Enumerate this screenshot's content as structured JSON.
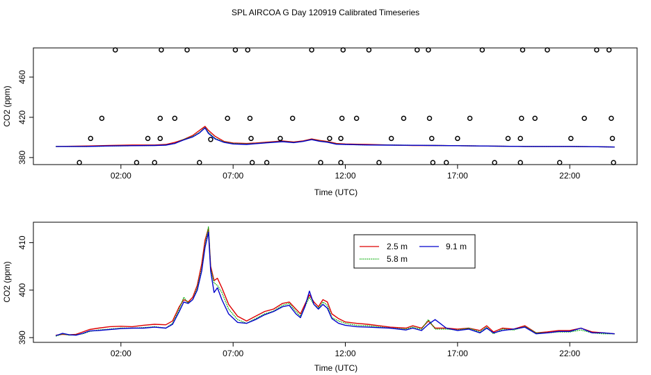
{
  "title": "SPL AIRCOA G  Day 120919  Calibrated Timeseries",
  "colors": {
    "red": "#dd0000",
    "green": "#00aa00",
    "blue": "#0000cc",
    "axis": "#000000"
  },
  "chart_data": [
    {
      "type": "scatter+line",
      "xlabel": "Time (UTC)",
      "ylabel": "CO2 (ppm)",
      "xlim": [
        -1.9,
        25.0
      ],
      "ylim": [
        373.0,
        489.0
      ],
      "xticks": [
        2,
        7,
        12,
        17,
        22
      ],
      "xtick_labels": [
        "02:00",
        "07:00",
        "12:00",
        "17:00",
        "22:00"
      ],
      "yticks": [
        380,
        420,
        460
      ],
      "ytick_labels": [
        "380",
        "420",
        "460"
      ],
      "flag_points": [
        {
          "x": 0.15,
          "y": 375
        },
        {
          "x": 0.65,
          "y": 399
        },
        {
          "x": 1.15,
          "y": 419
        },
        {
          "x": 1.75,
          "y": 487
        },
        {
          "x": 2.7,
          "y": 375
        },
        {
          "x": 3.2,
          "y": 399
        },
        {
          "x": 3.75,
          "y": 399
        },
        {
          "x": 3.75,
          "y": 419
        },
        {
          "x": 3.5,
          "y": 375
        },
        {
          "x": 3.8,
          "y": 487
        },
        {
          "x": 4.4,
          "y": 419
        },
        {
          "x": 4.95,
          "y": 487
        },
        {
          "x": 5.5,
          "y": 375
        },
        {
          "x": 6.0,
          "y": 398
        },
        {
          "x": 6.75,
          "y": 419
        },
        {
          "x": 7.1,
          "y": 487
        },
        {
          "x": 7.65,
          "y": 487
        },
        {
          "x": 7.75,
          "y": 419
        },
        {
          "x": 7.8,
          "y": 399
        },
        {
          "x": 7.85,
          "y": 375
        },
        {
          "x": 8.5,
          "y": 375
        },
        {
          "x": 9.1,
          "y": 399
        },
        {
          "x": 9.65,
          "y": 419
        },
        {
          "x": 10.5,
          "y": 487
        },
        {
          "x": 10.9,
          "y": 375
        },
        {
          "x": 11.3,
          "y": 399
        },
        {
          "x": 11.8,
          "y": 399
        },
        {
          "x": 11.85,
          "y": 419
        },
        {
          "x": 11.9,
          "y": 487
        },
        {
          "x": 11.8,
          "y": 375
        },
        {
          "x": 12.5,
          "y": 419
        },
        {
          "x": 13.05,
          "y": 487
        },
        {
          "x": 13.5,
          "y": 375
        },
        {
          "x": 14.05,
          "y": 399
        },
        {
          "x": 14.6,
          "y": 419
        },
        {
          "x": 15.2,
          "y": 487
        },
        {
          "x": 15.7,
          "y": 487
        },
        {
          "x": 15.75,
          "y": 419
        },
        {
          "x": 15.85,
          "y": 399
        },
        {
          "x": 15.9,
          "y": 375
        },
        {
          "x": 16.5,
          "y": 375
        },
        {
          "x": 17.0,
          "y": 399
        },
        {
          "x": 17.55,
          "y": 419
        },
        {
          "x": 18.1,
          "y": 487
        },
        {
          "x": 18.65,
          "y": 375
        },
        {
          "x": 19.25,
          "y": 399
        },
        {
          "x": 19.8,
          "y": 399
        },
        {
          "x": 19.8,
          "y": 375
        },
        {
          "x": 19.85,
          "y": 419
        },
        {
          "x": 19.9,
          "y": 487
        },
        {
          "x": 20.45,
          "y": 419
        },
        {
          "x": 21.0,
          "y": 487
        },
        {
          "x": 21.55,
          "y": 375
        },
        {
          "x": 22.05,
          "y": 399
        },
        {
          "x": 22.65,
          "y": 419
        },
        {
          "x": 23.2,
          "y": 487
        },
        {
          "x": 23.75,
          "y": 487
        },
        {
          "x": 23.85,
          "y": 419
        },
        {
          "x": 23.9,
          "y": 399
        },
        {
          "x": 23.95,
          "y": 375
        }
      ],
      "series": [
        {
          "name": "2.5 m",
          "color": "red",
          "x": [
            -0.9,
            0.5,
            1.5,
            2.5,
            3.5,
            4.0,
            4.4,
            4.8,
            5.2,
            5.5,
            5.75,
            5.9,
            6.2,
            6.6,
            7.0,
            7.6,
            8.0,
            8.6,
            9.2,
            9.7,
            10.1,
            10.5,
            10.85,
            11.2,
            11.6,
            12.0,
            13.0,
            14.0,
            15.0,
            16.0,
            17.0,
            18.0,
            19.0,
            20.0,
            21.0,
            22.0,
            23.0,
            24.0
          ],
          "y": [
            391,
            391.5,
            392,
            392.5,
            392.5,
            393,
            395,
            398,
            402,
            407,
            411,
            407,
            401,
            396,
            394.5,
            394,
            394.5,
            395.5,
            396.5,
            395.5,
            396.5,
            398.5,
            397,
            396,
            394,
            393.5,
            393,
            392.5,
            392,
            392,
            391.8,
            391.5,
            391.2,
            391,
            391,
            391,
            390.8,
            390.5
          ]
        },
        {
          "name": "5.8 m",
          "color": "green",
          "x": [
            -0.9,
            0.5,
            1.5,
            2.5,
            3.5,
            4.0,
            4.4,
            4.8,
            5.2,
            5.5,
            5.75,
            5.9,
            6.2,
            6.6,
            7.0,
            7.6,
            8.0,
            8.6,
            9.2,
            9.7,
            10.1,
            10.5,
            10.85,
            11.2,
            11.6,
            12.0,
            13.0,
            14.0,
            15.0,
            16.0,
            17.0,
            18.0,
            19.0,
            20.0,
            21.0,
            22.0,
            23.0,
            24.0
          ],
          "y": [
            391,
            391,
            391.5,
            391.8,
            392,
            392.5,
            394,
            398,
            401,
            405,
            410,
            405,
            399,
            395.5,
            394,
            393.5,
            394,
            395,
            396,
            395,
            396,
            398,
            396.5,
            395.5,
            393.5,
            393,
            392.5,
            392.5,
            392.2,
            392,
            391.8,
            391.5,
            391.2,
            391,
            391,
            391,
            390.8,
            390.5
          ]
        },
        {
          "name": "9.1 m",
          "color": "blue",
          "x": [
            -0.9,
            0.5,
            1.5,
            2.5,
            3.5,
            4.0,
            4.4,
            4.8,
            5.2,
            5.5,
            5.75,
            5.9,
            6.2,
            6.6,
            7.0,
            7.6,
            8.0,
            8.6,
            9.2,
            9.7,
            10.1,
            10.5,
            10.85,
            11.2,
            11.6,
            12.0,
            13.0,
            14.0,
            15.0,
            16.0,
            17.0,
            18.0,
            19.0,
            20.0,
            21.0,
            22.0,
            23.0,
            24.0
          ],
          "y": [
            391,
            391,
            391.5,
            391.8,
            392,
            392.3,
            394,
            397.5,
            400.5,
            404.5,
            409.5,
            404,
            398.5,
            395,
            393.5,
            393,
            393.8,
            394.8,
            395.8,
            394.8,
            396,
            397.8,
            396.2,
            395.2,
            393.2,
            393,
            392.5,
            392.3,
            392.2,
            392,
            391.8,
            391.5,
            391.2,
            391,
            391,
            391,
            390.8,
            390.5
          ]
        }
      ]
    },
    {
      "type": "line",
      "xlabel": "Time (UTC)",
      "ylabel": "CO2 (ppm)",
      "xlim": [
        -1.9,
        25.0
      ],
      "ylim": [
        389.0,
        414.3
      ],
      "xticks": [
        2,
        7,
        12,
        17,
        22
      ],
      "xtick_labels": [
        "02:00",
        "07:00",
        "12:00",
        "17:00",
        "22:00"
      ],
      "yticks": [
        390,
        400,
        410
      ],
      "ytick_labels": [
        "390",
        "400",
        "410"
      ],
      "legend": {
        "position": "top-center",
        "entries": [
          {
            "label": "2.5 m",
            "color": "red"
          },
          {
            "label": "5.8 m",
            "color": "green"
          },
          {
            "label": "9.1 m",
            "color": "blue"
          }
        ]
      },
      "series": [
        {
          "name": "2.5 m",
          "color": "red",
          "x": [
            -0.9,
            -0.6,
            -0.3,
            0.0,
            0.3,
            0.6,
            1.0,
            1.5,
            2.0,
            2.5,
            3.0,
            3.5,
            4.0,
            4.3,
            4.6,
            4.8,
            5.0,
            5.2,
            5.4,
            5.6,
            5.75,
            5.9,
            6.0,
            6.15,
            6.3,
            6.5,
            6.8,
            7.2,
            7.6,
            8.0,
            8.4,
            8.8,
            9.2,
            9.5,
            9.8,
            10.0,
            10.2,
            10.4,
            10.6,
            10.8,
            11.0,
            11.2,
            11.4,
            11.7,
            12.0,
            12.5,
            13.0,
            14.0,
            14.7,
            15.0,
            15.4,
            15.7,
            16.0,
            16.5,
            17.0,
            17.5,
            18.0,
            18.3,
            18.6,
            19.0,
            19.5,
            20.0,
            20.5,
            21.0,
            21.5,
            22.0,
            22.5,
            23.0,
            23.5,
            24.0
          ],
          "y": [
            390.5,
            390.7,
            390.6,
            390.7,
            391.2,
            391.7,
            392.0,
            392.3,
            392.4,
            392.3,
            392.6,
            392.8,
            392.7,
            393.5,
            396.5,
            398.0,
            397.5,
            398.5,
            401.0,
            405.5,
            410.5,
            413.0,
            405.0,
            402.0,
            402.5,
            400.5,
            397.0,
            394.5,
            393.5,
            394.5,
            395.5,
            396.0,
            397.2,
            397.5,
            396.0,
            395.0,
            397.0,
            399.0,
            397.5,
            396.5,
            398.0,
            397.5,
            395.0,
            394.0,
            393.3,
            393.0,
            392.8,
            392.2,
            392.0,
            392.5,
            392.0,
            393.5,
            392.0,
            392.0,
            391.8,
            392.0,
            391.5,
            392.5,
            391.2,
            392.0,
            391.8,
            392.5,
            391.0,
            391.2,
            391.5,
            391.5,
            392.0,
            391.2,
            391.0,
            390.8
          ]
        },
        {
          "name": "5.8 m",
          "color": "green",
          "x": [
            -0.9,
            -0.6,
            -0.3,
            0.0,
            0.3,
            0.6,
            1.0,
            1.5,
            2.0,
            2.5,
            3.0,
            3.5,
            4.0,
            4.3,
            4.6,
            4.8,
            5.0,
            5.2,
            5.4,
            5.6,
            5.75,
            5.9,
            6.0,
            6.15,
            6.3,
            6.5,
            6.8,
            7.2,
            7.6,
            8.0,
            8.4,
            8.8,
            9.2,
            9.5,
            9.8,
            10.0,
            10.2,
            10.4,
            10.6,
            10.8,
            11.0,
            11.2,
            11.4,
            11.7,
            12.0,
            12.5,
            13.0,
            14.0,
            14.7,
            15.0,
            15.4,
            15.7,
            16.0,
            16.5,
            17.0,
            17.5,
            18.0,
            18.3,
            18.6,
            19.0,
            19.5,
            20.0,
            20.5,
            21.0,
            21.5,
            22.0,
            22.5,
            23.0,
            23.5,
            24.0
          ],
          "y": [
            390.3,
            390.8,
            390.5,
            390.6,
            390.8,
            391.3,
            391.6,
            391.8,
            392.0,
            392.0,
            392.1,
            392.3,
            392.0,
            393.0,
            396.0,
            398.5,
            397.3,
            398.0,
            400.5,
            404.5,
            409.5,
            413.3,
            404.5,
            401.5,
            401.0,
            399.5,
            396.0,
            393.8,
            393.0,
            394.0,
            395.0,
            395.6,
            396.8,
            397.2,
            395.5,
            394.5,
            396.5,
            398.5,
            397.0,
            396.2,
            397.5,
            396.8,
            394.2,
            393.5,
            393.0,
            392.6,
            392.5,
            392.0,
            391.8,
            392.2,
            391.8,
            393.8,
            391.8,
            391.8,
            391.6,
            392.0,
            391.2,
            392.2,
            390.8,
            391.8,
            391.6,
            392.3,
            391.0,
            391.0,
            391.2,
            391.2,
            391.6,
            391.0,
            390.8,
            390.8
          ]
        },
        {
          "name": "9.1 m",
          "color": "blue",
          "x": [
            -0.9,
            -0.6,
            -0.3,
            0.0,
            0.3,
            0.6,
            1.0,
            1.5,
            2.0,
            2.5,
            3.0,
            3.5,
            4.0,
            4.3,
            4.6,
            4.8,
            5.0,
            5.2,
            5.4,
            5.6,
            5.75,
            5.9,
            6.0,
            6.15,
            6.3,
            6.5,
            6.8,
            7.2,
            7.6,
            8.0,
            8.4,
            8.8,
            9.2,
            9.5,
            9.8,
            10.0,
            10.2,
            10.4,
            10.6,
            10.8,
            11.0,
            11.2,
            11.4,
            11.7,
            12.0,
            12.5,
            13.0,
            14.0,
            14.7,
            15.0,
            15.4,
            15.7,
            16.0,
            16.5,
            17.0,
            17.5,
            18.0,
            18.3,
            18.6,
            19.0,
            19.5,
            20.0,
            20.5,
            21.0,
            21.5,
            22.0,
            22.5,
            23.0,
            23.5,
            24.0
          ],
          "y": [
            390.4,
            390.9,
            390.6,
            390.5,
            390.9,
            391.4,
            391.5,
            391.7,
            391.9,
            392.0,
            392.0,
            392.2,
            392.0,
            392.8,
            395.5,
            397.5,
            397.2,
            398.0,
            400.0,
            404.0,
            409.0,
            412.2,
            404.0,
            399.5,
            400.5,
            398.0,
            395.0,
            393.2,
            393.0,
            393.8,
            394.8,
            395.5,
            396.5,
            396.8,
            395.0,
            394.2,
            396.5,
            399.8,
            397.0,
            396.0,
            397.0,
            396.2,
            394.0,
            393.0,
            392.6,
            392.3,
            392.2,
            392.0,
            391.6,
            392.0,
            391.5,
            392.8,
            393.8,
            392.0,
            391.5,
            391.8,
            391.0,
            392.0,
            391.0,
            391.5,
            391.8,
            392.2,
            390.8,
            391.0,
            391.3,
            391.3,
            392.0,
            391.0,
            391.0,
            390.8
          ]
        }
      ]
    }
  ]
}
